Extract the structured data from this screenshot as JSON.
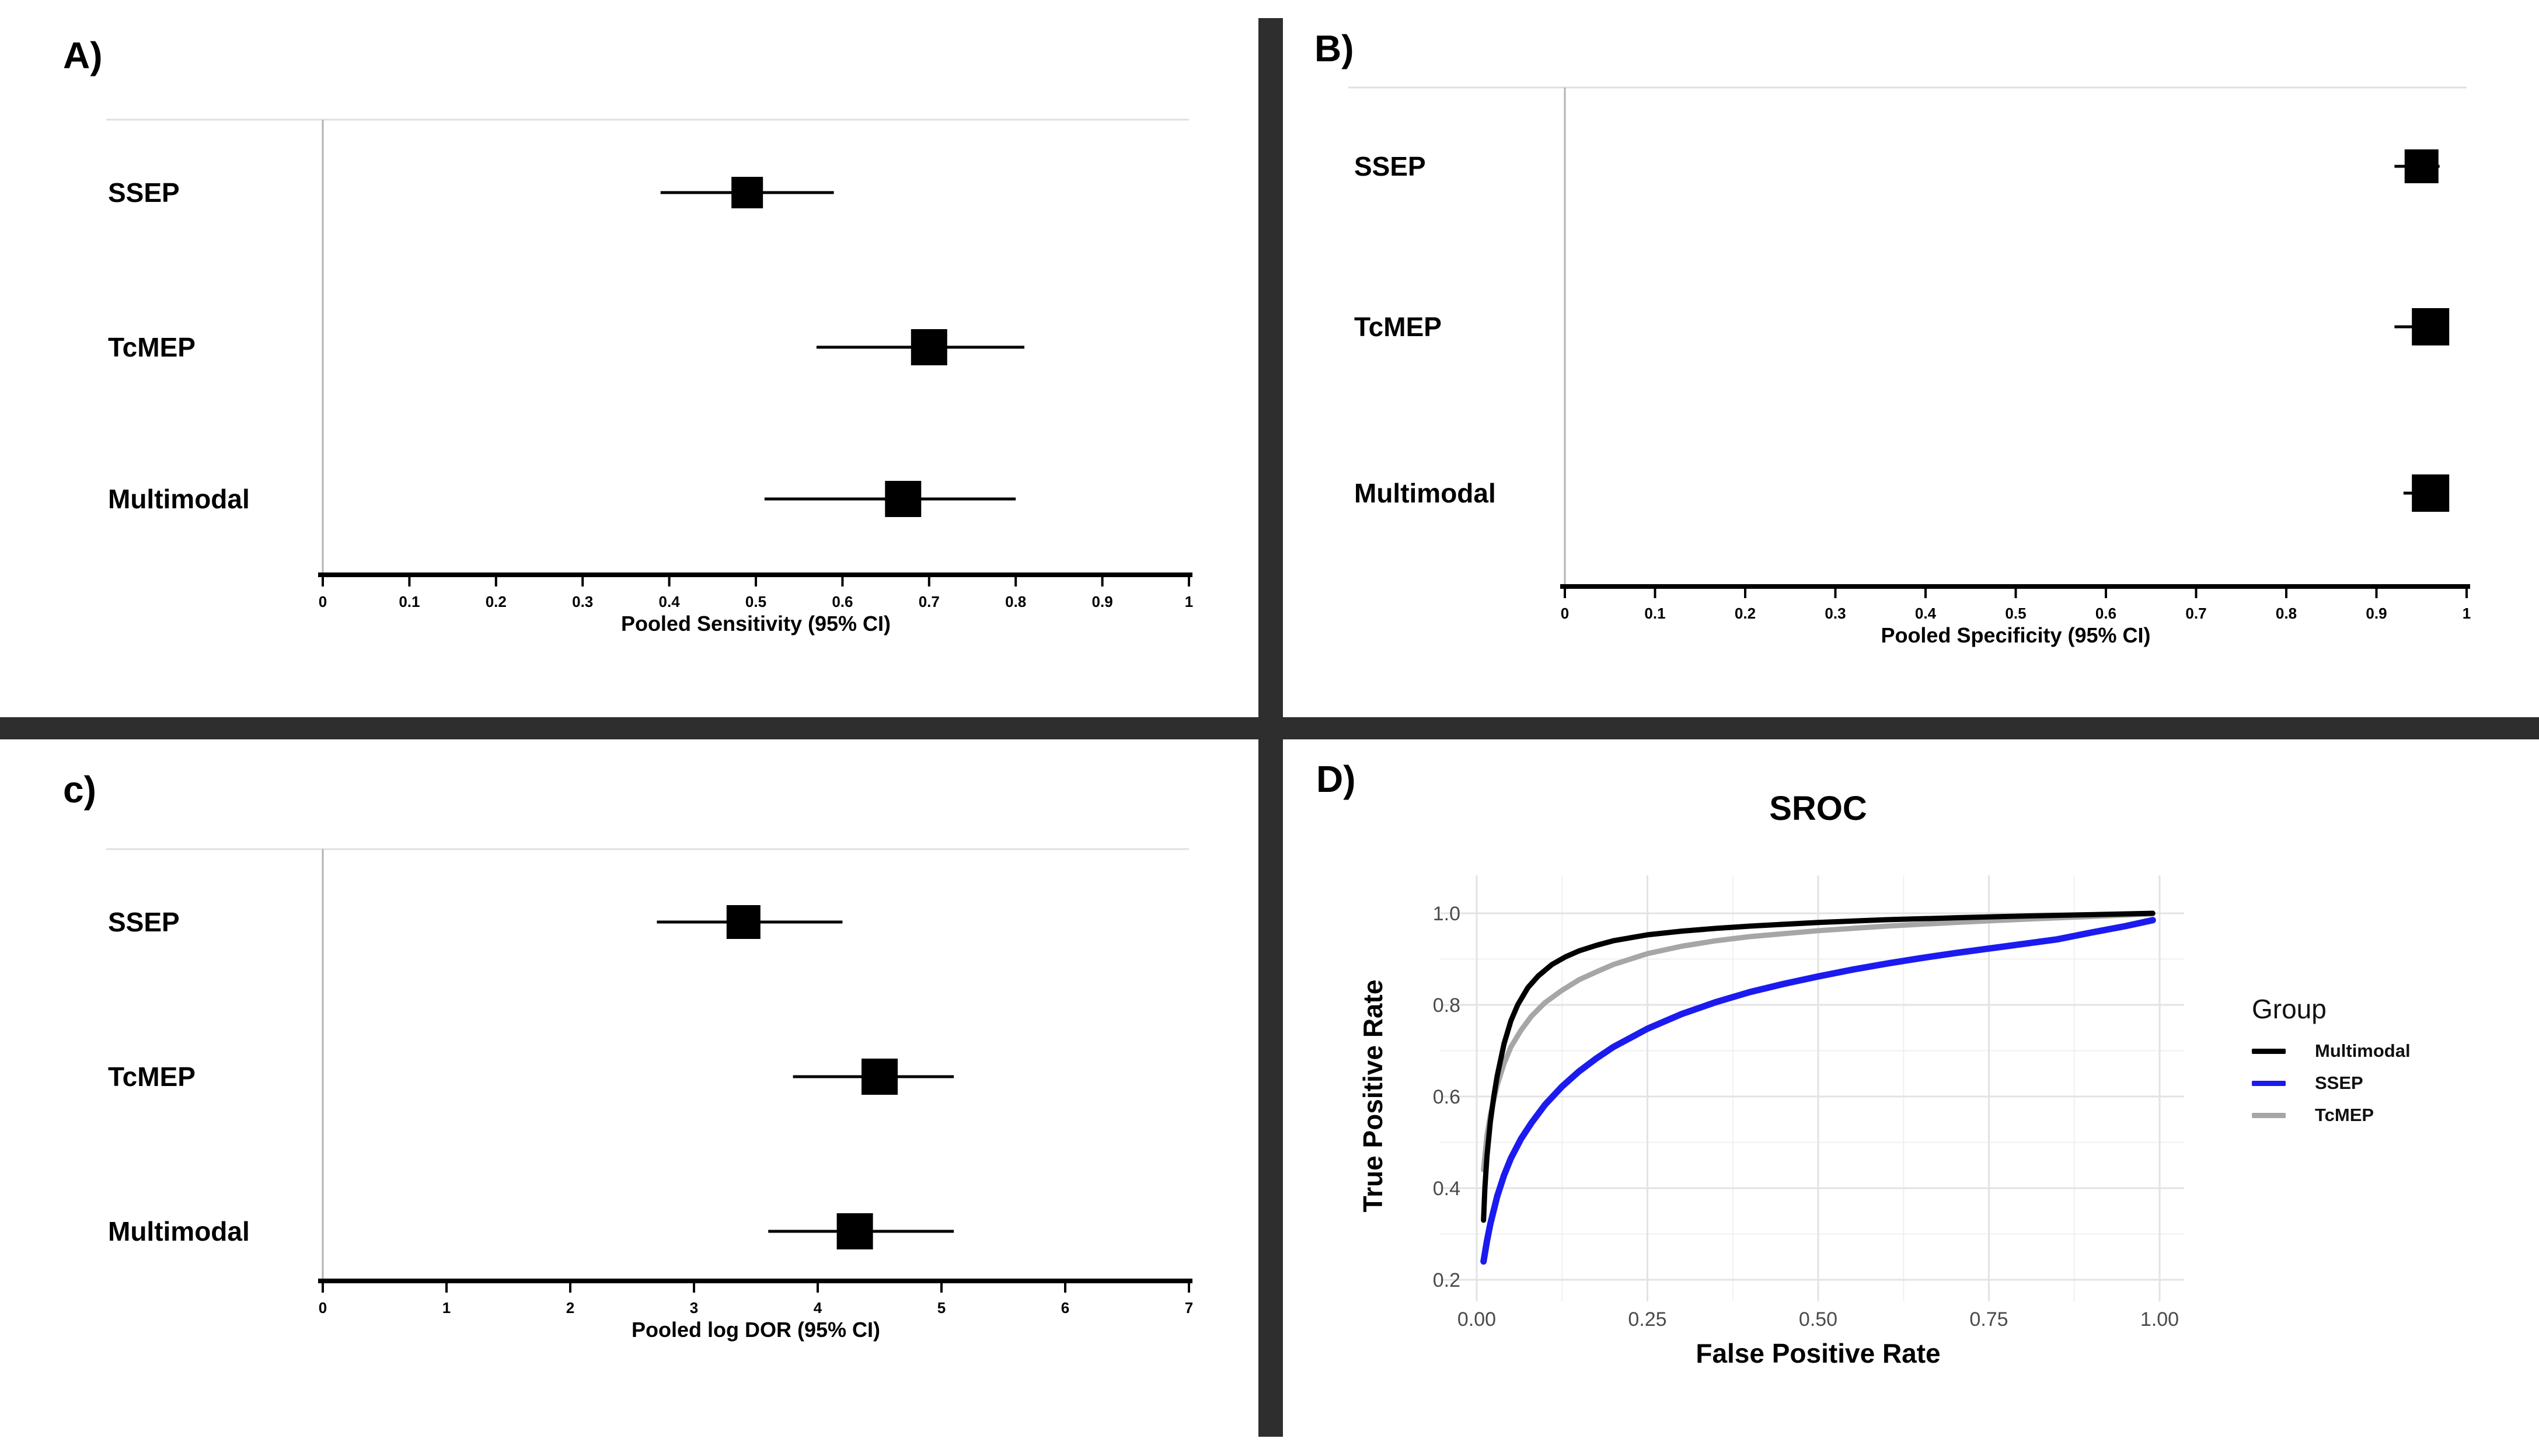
{
  "figure_colors": {
    "divider": "#2e2e2e",
    "forest_marker": "#000000",
    "forest_ci": "#000000",
    "axis_line": "#000000",
    "panel_border": "#e0e0e0",
    "y_axis_line": "#b3b3b3",
    "grid_major": "#e3e3e3",
    "grid_minor": "#f0f0f0",
    "tick_label_gray": "#4a4a4a"
  },
  "chart_data": [
    {
      "id": "A",
      "panel_letter": "A)",
      "type": "forest",
      "xlabel": "Pooled Sensitivity (95% CI)",
      "xlim": [
        0,
        1
      ],
      "xticks": [
        {
          "v": 0,
          "label": "0"
        },
        {
          "v": 0.1,
          "label": "0.1"
        },
        {
          "v": 0.2,
          "label": "0.2"
        },
        {
          "v": 0.3,
          "label": "0.3"
        },
        {
          "v": 0.4,
          "label": "0.4"
        },
        {
          "v": 0.5,
          "label": "0.5"
        },
        {
          "v": 0.6,
          "label": "0.6"
        },
        {
          "v": 0.7,
          "label": "0.7"
        },
        {
          "v": 0.8,
          "label": "0.8"
        },
        {
          "v": 0.9,
          "label": "0.9"
        },
        {
          "v": 1,
          "label": "1"
        }
      ],
      "categories": [
        "SSEP",
        "TcMEP",
        "Multimodal"
      ],
      "estimates": [
        0.49,
        0.7,
        0.67
      ],
      "ci_low": [
        0.39,
        0.57,
        0.51
      ],
      "ci_high": [
        0.59,
        0.81,
        0.8
      ]
    },
    {
      "id": "B",
      "panel_letter": "B)",
      "type": "forest",
      "xlabel": "Pooled Specificity (95% CI)",
      "xlim": [
        0,
        1
      ],
      "xticks": [
        {
          "v": 0,
          "label": "0"
        },
        {
          "v": 0.1,
          "label": "0.1"
        },
        {
          "v": 0.2,
          "label": "0.2"
        },
        {
          "v": 0.3,
          "label": "0.3"
        },
        {
          "v": 0.4,
          "label": "0.4"
        },
        {
          "v": 0.5,
          "label": "0.5"
        },
        {
          "v": 0.6,
          "label": "0.6"
        },
        {
          "v": 0.7,
          "label": "0.7"
        },
        {
          "v": 0.8,
          "label": "0.8"
        },
        {
          "v": 0.9,
          "label": "0.9"
        },
        {
          "v": 1,
          "label": "1"
        }
      ],
      "categories": [
        "SSEP",
        "TcMEP",
        "Multimodal"
      ],
      "estimates": [
        0.95,
        0.96,
        0.96
      ],
      "ci_low": [
        0.92,
        0.92,
        0.93
      ],
      "ci_high": [
        0.97,
        0.98,
        0.98
      ]
    },
    {
      "id": "C",
      "panel_letter": "c)",
      "type": "forest",
      "xlabel": "Pooled log DOR (95% CI)",
      "xlim": [
        0,
        7
      ],
      "xticks": [
        {
          "v": 0,
          "label": "0"
        },
        {
          "v": 1,
          "label": "1"
        },
        {
          "v": 2,
          "label": "2"
        },
        {
          "v": 3,
          "label": "3"
        },
        {
          "v": 4,
          "label": "4"
        },
        {
          "v": 5,
          "label": "5"
        },
        {
          "v": 6,
          "label": "6"
        },
        {
          "v": 7,
          "label": "7"
        }
      ],
      "categories": [
        "SSEP",
        "TcMEP",
        "Multimodal"
      ],
      "estimates": [
        3.4,
        4.5,
        4.3
      ],
      "ci_low": [
        2.7,
        3.8,
        3.6
      ],
      "ci_high": [
        4.2,
        5.1,
        5.1
      ]
    },
    {
      "id": "D",
      "panel_letter": "D)",
      "type": "line",
      "title": "SROC",
      "xlabel": "False Positive Rate",
      "ylabel": "True Positive Rate",
      "xlim": [
        0,
        1
      ],
      "ylim": [
        0.2,
        1.0
      ],
      "grid": true,
      "legend_position": "right",
      "legend_title": "Group",
      "xticks": [
        {
          "v": 0.0,
          "label": "0.00"
        },
        {
          "v": 0.25,
          "label": "0.25"
        },
        {
          "v": 0.5,
          "label": "0.50"
        },
        {
          "v": 0.75,
          "label": "0.75"
        },
        {
          "v": 1.0,
          "label": "1.00"
        }
      ],
      "yticks": [
        {
          "v": 1.0,
          "label": "1.0"
        },
        {
          "v": 0.8,
          "label": "0.8"
        },
        {
          "v": 0.6,
          "label": "0.6"
        },
        {
          "v": 0.4,
          "label": "0.4"
        },
        {
          "v": 0.2,
          "label": "0.2"
        }
      ],
      "series": [
        {
          "name": "Multimodal",
          "color": "#000000",
          "points": [
            [
              0.01,
              0.33
            ],
            [
              0.012,
              0.4
            ],
            [
              0.015,
              0.47
            ],
            [
              0.02,
              0.545
            ],
            [
              0.025,
              0.6
            ],
            [
              0.03,
              0.645
            ],
            [
              0.04,
              0.715
            ],
            [
              0.05,
              0.765
            ],
            [
              0.06,
              0.8
            ],
            [
              0.075,
              0.838
            ],
            [
              0.09,
              0.863
            ],
            [
              0.11,
              0.888
            ],
            [
              0.13,
              0.905
            ],
            [
              0.15,
              0.918
            ],
            [
              0.175,
              0.93
            ],
            [
              0.2,
              0.94
            ],
            [
              0.25,
              0.953
            ],
            [
              0.3,
              0.961
            ],
            [
              0.35,
              0.967
            ],
            [
              0.4,
              0.972
            ],
            [
              0.5,
              0.98
            ],
            [
              0.6,
              0.986
            ],
            [
              0.7,
              0.99
            ],
            [
              0.8,
              0.994
            ],
            [
              0.9,
              0.997
            ],
            [
              0.99,
              1.0
            ]
          ]
        },
        {
          "name": "SSEP",
          "color": "#1b1bf0",
          "points": [
            [
              0.01,
              0.24
            ],
            [
              0.015,
              0.285
            ],
            [
              0.02,
              0.322
            ],
            [
              0.03,
              0.382
            ],
            [
              0.04,
              0.428
            ],
            [
              0.05,
              0.465
            ],
            [
              0.065,
              0.508
            ],
            [
              0.08,
              0.542
            ],
            [
              0.1,
              0.582
            ],
            [
              0.125,
              0.622
            ],
            [
              0.15,
              0.655
            ],
            [
              0.175,
              0.683
            ],
            [
              0.2,
              0.708
            ],
            [
              0.25,
              0.748
            ],
            [
              0.3,
              0.78
            ],
            [
              0.35,
              0.806
            ],
            [
              0.4,
              0.828
            ],
            [
              0.45,
              0.846
            ],
            [
              0.5,
              0.862
            ],
            [
              0.55,
              0.877
            ],
            [
              0.6,
              0.89
            ],
            [
              0.65,
              0.902
            ],
            [
              0.7,
              0.913
            ],
            [
              0.75,
              0.923
            ],
            [
              0.8,
              0.933
            ],
            [
              0.85,
              0.943
            ],
            [
              0.9,
              0.958
            ],
            [
              0.95,
              0.972
            ],
            [
              0.99,
              0.985
            ]
          ]
        },
        {
          "name": "TcMEP",
          "color": "#a6a6a6",
          "points": [
            [
              0.01,
              0.44
            ],
            [
              0.015,
              0.515
            ],
            [
              0.02,
              0.56
            ],
            [
              0.03,
              0.625
            ],
            [
              0.04,
              0.672
            ],
            [
              0.05,
              0.708
            ],
            [
              0.065,
              0.745
            ],
            [
              0.08,
              0.775
            ],
            [
              0.1,
              0.805
            ],
            [
              0.125,
              0.832
            ],
            [
              0.15,
              0.855
            ],
            [
              0.175,
              0.872
            ],
            [
              0.2,
              0.888
            ],
            [
              0.25,
              0.912
            ],
            [
              0.3,
              0.928
            ],
            [
              0.35,
              0.94
            ],
            [
              0.4,
              0.949
            ],
            [
              0.5,
              0.962
            ],
            [
              0.6,
              0.972
            ],
            [
              0.7,
              0.98
            ],
            [
              0.8,
              0.987
            ],
            [
              0.9,
              0.993
            ],
            [
              0.99,
              0.999
            ]
          ]
        }
      ]
    }
  ]
}
